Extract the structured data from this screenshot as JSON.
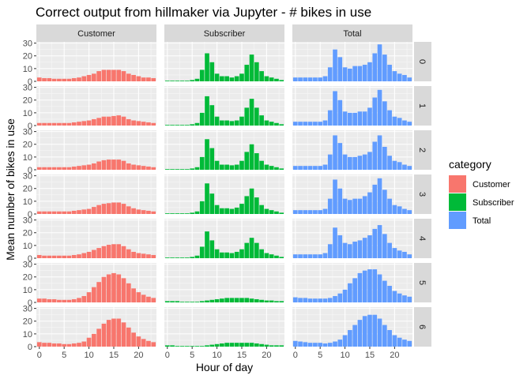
{
  "chart_data": {
    "type": "bar",
    "title": "Correct output from hillmaker via Jupyter - # bikes in use",
    "xlabel": "Hour of day",
    "ylabel": "Mean number of bikes in use",
    "x_ticks": [
      0,
      5,
      10,
      15,
      20
    ],
    "y_ticks": [
      0,
      10,
      20,
      30
    ],
    "xlim": [
      -0.6,
      23.6
    ],
    "ylim": [
      0,
      31
    ],
    "grid": true,
    "legend_position": "right",
    "legend_title": "category",
    "column_facets": [
      "Customer",
      "Subscriber",
      "Total"
    ],
    "row_facets": [
      "0",
      "1",
      "2",
      "3",
      "4",
      "5",
      "6"
    ],
    "colors": {
      "Customer": "#F8766D",
      "Subscriber": "#00BA38",
      "Total": "#619CFF"
    },
    "hours": [
      0,
      1,
      2,
      3,
      4,
      5,
      6,
      7,
      8,
      9,
      10,
      11,
      12,
      13,
      14,
      15,
      16,
      17,
      18,
      19,
      20,
      21,
      22,
      23
    ],
    "series": {
      "0": {
        "Customer": [
          3,
          2.5,
          2.5,
          2,
          2,
          2,
          2,
          2.5,
          3,
          4,
          5,
          6,
          8,
          9,
          9,
          9,
          9,
          8,
          6,
          5,
          4,
          3,
          3,
          2.5
        ],
        "Subscriber": [
          0.5,
          0.5,
          0.5,
          0.5,
          0.5,
          1,
          2,
          9,
          22,
          15,
          6,
          4,
          4,
          3,
          4,
          6,
          13,
          21,
          15,
          8,
          4,
          3,
          2,
          1
        ],
        "Total": [
          3,
          3,
          3,
          3,
          3,
          3,
          4,
          11,
          25,
          19,
          11,
          10,
          12,
          12,
          13,
          15,
          22,
          29,
          21,
          13,
          8,
          6,
          5,
          3
        ]
      },
      "1": {
        "Customer": [
          2,
          2,
          2,
          2,
          2,
          2,
          2,
          2.5,
          3,
          3.5,
          4,
          5,
          6,
          7,
          7,
          7.5,
          8,
          7,
          5,
          4,
          3.5,
          3,
          2.5,
          2
        ],
        "Subscriber": [
          0.5,
          0.5,
          0.5,
          0.5,
          0.5,
          1,
          2,
          10,
          23,
          16,
          7,
          4,
          4,
          3.5,
          4,
          7,
          14,
          21,
          14,
          8,
          4,
          3,
          2,
          1
        ],
        "Total": [
          3,
          3,
          3,
          3,
          3,
          3,
          4,
          12,
          27,
          20,
          11,
          10,
          10,
          11,
          11,
          14,
          22,
          28,
          19,
          12,
          7,
          6,
          4,
          3
        ]
      },
      "2": {
        "Customer": [
          2,
          2,
          2,
          2,
          2,
          2,
          2,
          2.5,
          3,
          3.5,
          4,
          5,
          6.5,
          7.5,
          8,
          8,
          8,
          7,
          5,
          4,
          3.5,
          3,
          2.5,
          2
        ],
        "Subscriber": [
          0.5,
          0.5,
          0.5,
          0.5,
          0.5,
          1,
          2,
          10,
          24,
          17,
          7,
          4,
          4,
          3.5,
          4,
          7,
          14,
          20,
          13,
          7,
          4,
          3,
          2,
          1
        ],
        "Total": [
          3,
          3,
          3,
          3,
          3,
          3,
          4,
          12,
          27,
          21,
          12,
          10,
          10,
          11,
          12,
          14,
          22,
          27,
          18,
          11,
          7,
          6,
          4,
          3
        ]
      },
      "3": {
        "Customer": [
          2,
          2,
          2,
          2,
          2,
          2,
          2,
          2.5,
          3,
          3.5,
          4,
          5.5,
          7,
          8,
          8.5,
          9,
          9,
          8,
          6,
          4.5,
          3.5,
          3,
          2.5,
          2
        ],
        "Subscriber": [
          0.5,
          0.5,
          0.5,
          0.5,
          0.5,
          1,
          2,
          10,
          24,
          16,
          7,
          4.5,
          4.5,
          4,
          5,
          8,
          14,
          20,
          13,
          7,
          4,
          3,
          2,
          1
        ],
        "Total": [
          3,
          3,
          3,
          3,
          3,
          3,
          4,
          12,
          27,
          20,
          12,
          11,
          12,
          12,
          14,
          17,
          23,
          28,
          19,
          12,
          7,
          6,
          4,
          3
        ]
      },
      "4": {
        "Customer": [
          2.5,
          2,
          2,
          2,
          2,
          2,
          2,
          2.5,
          3,
          4,
          5,
          6.5,
          8,
          9.5,
          10.5,
          11,
          11,
          9.5,
          7,
          5,
          4,
          3.5,
          3,
          2.5
        ],
        "Subscriber": [
          0.5,
          0.5,
          0.5,
          0.5,
          0.5,
          1,
          2,
          9,
          21,
          14,
          7,
          4.5,
          4.5,
          4,
          5,
          7,
          12,
          16,
          12,
          7,
          4,
          3,
          2,
          1
        ],
        "Total": [
          3,
          3,
          3,
          3,
          3,
          3,
          4,
          11,
          24,
          18,
          12,
          11,
          13,
          14,
          16,
          18,
          23,
          26,
          19,
          12,
          8,
          6,
          5,
          3
        ]
      },
      "5": {
        "Customer": [
          3,
          3,
          2.5,
          2.5,
          2,
          2,
          2,
          2.5,
          3.5,
          5,
          8,
          12,
          16,
          20,
          22,
          23,
          22,
          19,
          15,
          11,
          8,
          6,
          4.5,
          3.5
        ],
        "Subscriber": [
          1,
          1,
          1,
          0.5,
          0.5,
          0.5,
          0.5,
          1,
          1.5,
          2,
          2.5,
          3,
          3.5,
          3.5,
          3.5,
          3.5,
          3.5,
          3,
          2.5,
          2,
          1.5,
          1.5,
          1,
          1
        ],
        "Total": [
          4,
          3.5,
          3.5,
          3,
          3,
          3,
          3,
          3.5,
          5,
          7,
          10,
          15,
          19,
          23,
          25,
          26,
          26,
          22,
          17,
          13,
          9,
          7,
          5.5,
          4.5
        ]
      },
      "6": {
        "Customer": [
          3.5,
          3,
          3,
          2.5,
          2.5,
          2,
          2,
          2.5,
          3,
          4,
          7,
          10,
          14,
          18,
          21,
          22,
          22,
          19,
          15,
          11,
          8,
          6,
          4.5,
          3.5
        ],
        "Subscriber": [
          1,
          1,
          0.5,
          0.5,
          0.5,
          0.5,
          0.5,
          0.5,
          1,
          1.5,
          2,
          2.5,
          3,
          3,
          3,
          3,
          3,
          3,
          2.5,
          2,
          1.5,
          1,
          1,
          1
        ],
        "Total": [
          4.5,
          4,
          3.5,
          3,
          3,
          3,
          2.5,
          3,
          4,
          5.5,
          9,
          13,
          17,
          21,
          24,
          25,
          25,
          22,
          17,
          13,
          9,
          7,
          5.5,
          4.5
        ]
      }
    }
  }
}
